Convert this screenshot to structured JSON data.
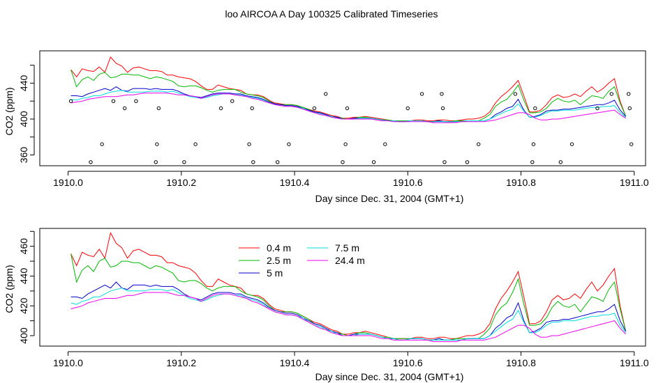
{
  "title": "loo AIRCOA A  Day 100325  Calibrated Timeseries",
  "colors": {
    "0.4 m": "#ff0000",
    "2.5 m": "#00bb00",
    "5 m": "#0000cc",
    "7.5 m": "#00dddd",
    "24.4 m": "#ee00ee",
    "flags": "#000000"
  },
  "chart_data": [
    {
      "type": "line",
      "xlabel": "Day since Dec. 31, 2004 (GMT+1)",
      "ylabel": "CO2 (ppm)",
      "xlim": [
        1909.95,
        1911.02
      ],
      "ylim": [
        348,
        476
      ],
      "xticks": [
        1910.0,
        1910.2,
        1910.4,
        1910.6,
        1910.8,
        1911.0
      ],
      "xtick_labels": [
        "1910.0",
        "1910.2",
        "1910.4",
        "1910.6",
        "1910.8",
        "1911.0"
      ],
      "yticks": [
        360,
        380,
        400,
        420,
        440,
        460
      ],
      "ytick_labels": [
        "360",
        "",
        "400",
        "",
        "440",
        ""
      ],
      "x": [
        1910.005,
        1910.015,
        1910.025,
        1910.035,
        1910.045,
        1910.055,
        1910.065,
        1910.075,
        1910.085,
        1910.095,
        1910.105,
        1910.115,
        1910.125,
        1910.135,
        1910.145,
        1910.155,
        1910.165,
        1910.175,
        1910.185,
        1910.195,
        1910.205,
        1910.215,
        1910.225,
        1910.235,
        1910.245,
        1910.255,
        1910.265,
        1910.275,
        1910.285,
        1910.295,
        1910.305,
        1910.315,
        1910.325,
        1910.335,
        1910.345,
        1910.355,
        1910.365,
        1910.375,
        1910.385,
        1910.395,
        1910.405,
        1910.415,
        1910.425,
        1910.435,
        1910.445,
        1910.455,
        1910.465,
        1910.475,
        1910.485,
        1910.495,
        1910.505,
        1910.515,
        1910.525,
        1910.535,
        1910.545,
        1910.555,
        1910.565,
        1910.575,
        1910.585,
        1910.595,
        1910.605,
        1910.615,
        1910.625,
        1910.635,
        1910.645,
        1910.655,
        1910.665,
        1910.675,
        1910.685,
        1910.695,
        1910.705,
        1910.715,
        1910.725,
        1910.735,
        1910.745,
        1910.755,
        1910.765,
        1910.775,
        1910.785,
        1910.795,
        1910.805,
        1910.815,
        1910.825,
        1910.835,
        1910.845,
        1910.855,
        1910.865,
        1910.875,
        1910.885,
        1910.895,
        1910.905,
        1910.915,
        1910.925,
        1910.935,
        1910.945,
        1910.955,
        1910.965,
        1910.975,
        1910.985
      ],
      "series": [
        {
          "name": "0.4 m",
          "values": [
            455,
            447,
            456,
            454,
            453,
            458,
            452,
            469,
            462,
            459,
            452,
            457,
            458,
            456,
            454,
            454,
            453,
            449,
            449,
            447,
            446,
            445,
            442,
            437,
            433,
            433,
            438,
            436,
            434,
            433,
            432,
            428,
            427,
            427,
            425,
            421,
            418,
            417,
            416,
            416,
            415,
            413,
            411,
            409,
            408,
            406,
            404,
            403,
            401,
            401,
            402,
            402,
            403,
            402,
            401,
            400,
            399,
            398,
            398,
            398,
            398,
            399,
            399,
            398,
            398,
            399,
            399,
            398,
            398,
            399,
            400,
            400,
            401,
            403,
            408,
            418,
            425,
            430,
            436,
            443,
            426,
            408,
            408,
            410,
            416,
            424,
            427,
            424,
            425,
            428,
            425,
            431,
            436,
            430,
            434,
            440,
            445,
            420,
            403
          ]
        },
        {
          "name": "2.5 m",
          "values": [
            455,
            436,
            444,
            447,
            443,
            450,
            452,
            446,
            447,
            450,
            450,
            449,
            449,
            447,
            445,
            447,
            446,
            444,
            442,
            437,
            436,
            437,
            437,
            435,
            432,
            430,
            432,
            433,
            433,
            433,
            430,
            428,
            427,
            426,
            424,
            420,
            417,
            416,
            416,
            416,
            415,
            413,
            411,
            408,
            407,
            405,
            403,
            402,
            401,
            400,
            401,
            402,
            402,
            401,
            400,
            399,
            399,
            398,
            398,
            398,
            398,
            398,
            398,
            397,
            397,
            398,
            397,
            397,
            398,
            398,
            398,
            398,
            398,
            401,
            405,
            414,
            419,
            422,
            429,
            438,
            421,
            407,
            407,
            408,
            412,
            419,
            423,
            420,
            419,
            421,
            416,
            421,
            426,
            425,
            423,
            431,
            436,
            418,
            403
          ]
        },
        {
          "name": "5 m",
          "values": [
            426,
            426,
            425,
            428,
            430,
            432,
            434,
            432,
            436,
            432,
            431,
            434,
            434,
            434,
            433,
            434,
            433,
            433,
            433,
            431,
            428,
            426,
            425,
            424,
            426,
            428,
            429,
            429,
            429,
            428,
            428,
            426,
            425,
            424,
            422,
            419,
            417,
            416,
            415,
            415,
            414,
            412,
            410,
            408,
            407,
            405,
            403,
            402,
            400,
            400,
            401,
            401,
            401,
            401,
            400,
            399,
            398,
            398,
            397,
            397,
            398,
            398,
            398,
            397,
            397,
            398,
            397,
            397,
            397,
            397,
            398,
            398,
            398,
            398,
            400,
            405,
            408,
            412,
            414,
            422,
            410,
            402,
            403,
            405,
            409,
            410,
            410,
            411,
            411,
            412,
            413,
            414,
            415,
            416,
            416,
            418,
            421,
            410,
            403
          ]
        },
        {
          "name": "7.5 m",
          "values": [
            422,
            421,
            423,
            424,
            426,
            426,
            428,
            430,
            431,
            432,
            430,
            430,
            430,
            430,
            431,
            431,
            431,
            430,
            431,
            429,
            427,
            425,
            424,
            423,
            424,
            426,
            427,
            428,
            428,
            427,
            427,
            425,
            424,
            423,
            421,
            418,
            416,
            415,
            414,
            414,
            413,
            412,
            409,
            407,
            406,
            404,
            403,
            401,
            400,
            400,
            400,
            401,
            401,
            401,
            400,
            399,
            398,
            398,
            397,
            397,
            398,
            398,
            398,
            397,
            397,
            397,
            397,
            397,
            397,
            397,
            398,
            398,
            398,
            398,
            400,
            403,
            406,
            409,
            411,
            417,
            409,
            402,
            402,
            404,
            407,
            409,
            409,
            410,
            410,
            410,
            411,
            412,
            413,
            413,
            414,
            414,
            415,
            407,
            402
          ]
        },
        {
          "name": "24.4 m",
          "values": [
            418,
            419,
            420,
            422,
            423,
            424,
            425,
            425,
            425,
            426,
            427,
            427,
            428,
            429,
            429,
            429,
            429,
            429,
            428,
            427,
            427,
            426,
            425,
            423,
            425,
            427,
            428,
            428,
            428,
            427,
            426,
            425,
            423,
            422,
            420,
            418,
            416,
            415,
            414,
            414,
            413,
            411,
            409,
            407,
            405,
            404,
            402,
            401,
            400,
            400,
            400,
            400,
            400,
            400,
            399,
            398,
            398,
            397,
            397,
            397,
            397,
            397,
            397,
            397,
            396,
            396,
            396,
            396,
            396,
            397,
            397,
            397,
            397,
            397,
            398,
            399,
            401,
            403,
            405,
            407,
            407,
            405,
            401,
            399,
            399,
            400,
            400,
            401,
            402,
            403,
            404,
            405,
            406,
            407,
            408,
            409,
            410,
            405,
            401
          ]
        }
      ],
      "flags": {
        "x": [
          1910.005,
          1910.04,
          1910.06,
          1910.08,
          1910.1,
          1910.12,
          1910.155,
          1910.157,
          1910.16,
          1910.205,
          1910.225,
          1910.27,
          1910.29,
          1910.32,
          1910.325,
          1910.327,
          1910.37,
          1910.39,
          1910.435,
          1910.455,
          1910.485,
          1910.49,
          1910.493,
          1910.54,
          1910.56,
          1910.6,
          1910.625,
          1910.66,
          1910.662,
          1910.665,
          1910.705,
          1910.725,
          1910.79,
          1910.82,
          1910.822,
          1910.825,
          1910.87,
          1910.89,
          1910.935,
          1910.96,
          1910.99,
          1910.992,
          1910.995
        ],
        "y": [
          420,
          352,
          372,
          420,
          412,
          420,
          352,
          372,
          412,
          352,
          372,
          412,
          420,
          372,
          412,
          352,
          352,
          372,
          412,
          428,
          352,
          372,
          412,
          352,
          372,
          412,
          428,
          428,
          412,
          352,
          352,
          372,
          428,
          352,
          372,
          412,
          352,
          372,
          412,
          428,
          428,
          412,
          372
        ]
      }
    },
    {
      "type": "line",
      "xlabel": "Day since Dec. 31, 2004 (GMT+1)",
      "ylabel": "CO2 (ppm)",
      "xlim": [
        1909.95,
        1911.02
      ],
      "ylim": [
        393,
        472
      ],
      "xticks": [
        1910.0,
        1910.2,
        1910.4,
        1910.6,
        1910.8,
        1911.0
      ],
      "xtick_labels": [
        "1910.0",
        "1910.2",
        "1910.4",
        "1910.6",
        "1910.8",
        "1911.0"
      ],
      "yticks": [
        400,
        410,
        420,
        430,
        440,
        450,
        460,
        470
      ],
      "ytick_labels": [
        "400",
        "",
        "420",
        "",
        "440",
        "",
        "460",
        ""
      ],
      "legend": {
        "placement": "top-left",
        "entries": [
          "0.4 m",
          "2.5 m",
          "5 m",
          "7.5 m",
          "24.4 m"
        ]
      }
    }
  ]
}
